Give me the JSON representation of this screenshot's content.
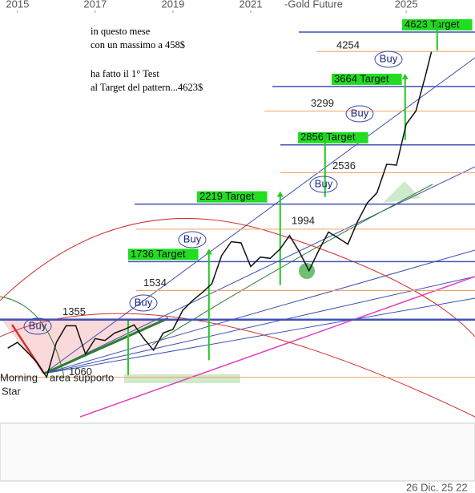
{
  "chart_data": {
    "type": "line",
    "title": "-Gold Future",
    "log_y": true,
    "color": "#111111",
    "xlim": [
      2014.55,
      2026.77
    ],
    "ylim": [
      880,
      5300
    ],
    "xticks": [
      2015,
      2017,
      2019,
      2021,
      2025
    ],
    "x": [
      2014.75,
      2015.0,
      2015.25,
      2015.5,
      2015.75,
      2016.0,
      2016.25,
      2016.5,
      2016.75,
      2017.0,
      2017.25,
      2017.5,
      2017.75,
      2018.0,
      2018.25,
      2018.5,
      2018.75,
      2019.0,
      2019.25,
      2019.5,
      2019.75,
      2020.0,
      2020.25,
      2020.5,
      2020.75,
      2021.0,
      2021.25,
      2021.5,
      2021.75,
      2022.0,
      2022.25,
      2022.5,
      2022.75,
      2023.0,
      2023.25,
      2023.5,
      2023.75,
      2024.0,
      2024.25,
      2024.5,
      2024.75,
      2025.0,
      2025.25,
      2025.5,
      2025.65
    ],
    "values": [
      1200,
      1230,
      1180,
      1130,
      1060,
      1230,
      1320,
      1320,
      1170,
      1250,
      1240,
      1280,
      1300,
      1325,
      1250,
      1190,
      1280,
      1300,
      1410,
      1470,
      1520,
      1580,
      1780,
      1890,
      1880,
      1700,
      1770,
      1760,
      1830,
      1940,
      1810,
      1670,
      1820,
      1970,
      1920,
      1870,
      2060,
      2230,
      2330,
      2630,
      2620,
      3120,
      3300,
      3850,
      4250
    ],
    "levels": [
      4254,
      3299,
      2536,
      1994,
      1534,
      1355,
      1060
    ],
    "targets": [
      {
        "value": 4623,
        "label": "4623 Target"
      },
      {
        "value": 3664,
        "label": "3664 Target"
      },
      {
        "value": 2856,
        "label": "2856 Target"
      },
      {
        "value": 2219,
        "label": "2219 Target"
      },
      {
        "value": 1736,
        "label": "1736 Target"
      }
    ],
    "notes": [
      "in questo mese",
      "con un massimo a 458$",
      "ha fatto il 1° Test",
      "al Target del pattern...4623$"
    ],
    "buy_labels": [
      "Buy",
      "Buy",
      "Buy",
      "Buy",
      "Buy",
      "Buy"
    ],
    "pattern_labels": [
      "Morning",
      "Star"
    ],
    "support_label": "area supporto",
    "date_label": "26 Dic. 25 22"
  }
}
